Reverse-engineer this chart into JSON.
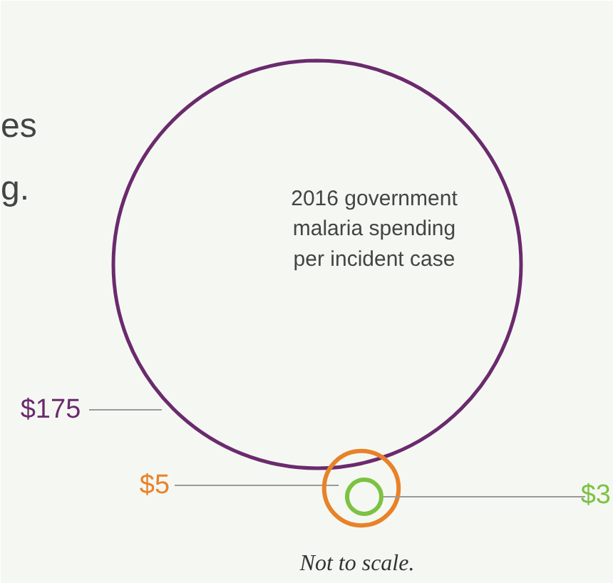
{
  "chart_data": {
    "type": "other",
    "categories": [
      null,
      null,
      null
    ],
    "values": [
      175,
      5,
      3
    ],
    "value_labels": [
      "$175",
      "$5",
      "$3"
    ],
    "colors": [
      "#6b2a6e",
      "#e8822a",
      "#7cc242"
    ],
    "annotations": [
      "2016 government\nmalaria spending\nper incident case",
      "Not to scale.",
      "es",
      "g."
    ]
  }
}
